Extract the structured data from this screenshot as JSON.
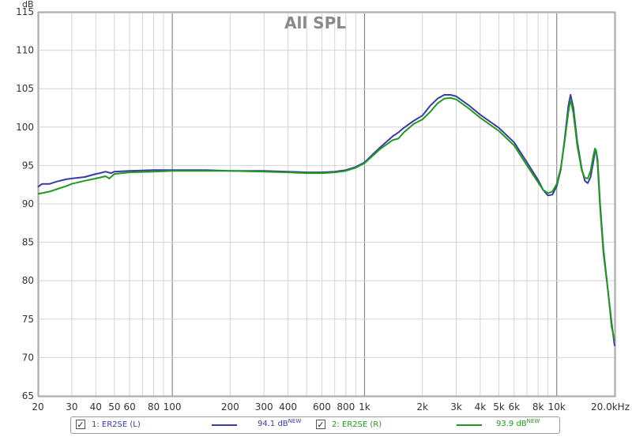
{
  "chart_data": {
    "type": "line",
    "title": "All SPL",
    "ylabel": "dB",
    "xscale": "log",
    "xlim": [
      20,
      20000
    ],
    "ylim": [
      65,
      115
    ],
    "grid": true,
    "x_ticks": [
      20,
      30,
      40,
      50,
      60,
      80,
      100,
      200,
      300,
      400,
      600,
      800,
      1000,
      2000,
      3000,
      4000,
      5000,
      6000,
      8000,
      10000,
      20000
    ],
    "x_tick_labels": [
      "20",
      "30",
      "40",
      "50",
      "60",
      "80",
      "100",
      "200",
      "300",
      "400",
      "600",
      "800",
      "1k",
      "2k",
      "3k",
      "4k",
      "5k",
      "6k",
      "8k",
      "10k",
      "20.0kHz"
    ],
    "y_ticks": [
      65,
      70,
      75,
      80,
      85,
      90,
      95,
      100,
      105,
      110,
      115
    ],
    "y_tick_labels": [
      "65",
      "70",
      "75",
      "80",
      "85",
      "90",
      "95",
      "100",
      "105",
      "110",
      "115"
    ],
    "series": [
      {
        "name": "1: ER2SE (L)",
        "color": "#3a3aa8",
        "points": [
          [
            20,
            92.2
          ],
          [
            21,
            92.6
          ],
          [
            23,
            92.6
          ],
          [
            25,
            92.9
          ],
          [
            28,
            93.2
          ],
          [
            30,
            93.3
          ],
          [
            35,
            93.5
          ],
          [
            40,
            93.9
          ],
          [
            42,
            94.0
          ],
          [
            45,
            94.2
          ],
          [
            48,
            94.0
          ],
          [
            50,
            94.2
          ],
          [
            60,
            94.3
          ],
          [
            80,
            94.4
          ],
          [
            100,
            94.4
          ],
          [
            150,
            94.4
          ],
          [
            200,
            94.3
          ],
          [
            300,
            94.3
          ],
          [
            400,
            94.2
          ],
          [
            500,
            94.1
          ],
          [
            600,
            94.1
          ],
          [
            700,
            94.2
          ],
          [
            800,
            94.4
          ],
          [
            900,
            94.8
          ],
          [
            1000,
            95.4
          ],
          [
            1200,
            97.3
          ],
          [
            1400,
            98.8
          ],
          [
            1500,
            99.3
          ],
          [
            1600,
            99.9
          ],
          [
            1800,
            100.8
          ],
          [
            2000,
            101.5
          ],
          [
            2200,
            102.8
          ],
          [
            2400,
            103.7
          ],
          [
            2600,
            104.2
          ],
          [
            2800,
            104.2
          ],
          [
            3000,
            104.0
          ],
          [
            3500,
            102.8
          ],
          [
            4000,
            101.6
          ],
          [
            5000,
            99.9
          ],
          [
            6000,
            98.0
          ],
          [
            7000,
            95.4
          ],
          [
            8000,
            93.1
          ],
          [
            8500,
            91.8
          ],
          [
            9000,
            91.1
          ],
          [
            9500,
            91.2
          ],
          [
            10000,
            92.3
          ],
          [
            10500,
            94.5
          ],
          [
            11000,
            98.5
          ],
          [
            11500,
            102.8
          ],
          [
            11800,
            104.2
          ],
          [
            12200,
            102.5
          ],
          [
            12800,
            98.0
          ],
          [
            13500,
            94.5
          ],
          [
            14000,
            93.0
          ],
          [
            14500,
            92.7
          ],
          [
            15000,
            93.5
          ],
          [
            15500,
            95.5
          ],
          [
            15800,
            96.8
          ],
          [
            16000,
            97.0
          ],
          [
            16300,
            95.8
          ],
          [
            16800,
            90.0
          ],
          [
            17500,
            84.0
          ],
          [
            18500,
            78.5
          ],
          [
            19300,
            74.5
          ],
          [
            20000,
            71.5
          ]
        ]
      },
      {
        "name": "2: ER2SE (R)",
        "color": "#1e9a1e",
        "points": [
          [
            20,
            91.3
          ],
          [
            21,
            91.4
          ],
          [
            23,
            91.6
          ],
          [
            25,
            91.9
          ],
          [
            28,
            92.3
          ],
          [
            30,
            92.6
          ],
          [
            35,
            93.0
          ],
          [
            40,
            93.3
          ],
          [
            45,
            93.6
          ],
          [
            47,
            93.3
          ],
          [
            50,
            93.9
          ],
          [
            60,
            94.1
          ],
          [
            80,
            94.2
          ],
          [
            100,
            94.3
          ],
          [
            150,
            94.3
          ],
          [
            200,
            94.3
          ],
          [
            300,
            94.2
          ],
          [
            400,
            94.1
          ],
          [
            500,
            94.0
          ],
          [
            600,
            94.0
          ],
          [
            700,
            94.1
          ],
          [
            800,
            94.3
          ],
          [
            900,
            94.7
          ],
          [
            1000,
            95.3
          ],
          [
            1200,
            97.1
          ],
          [
            1400,
            98.3
          ],
          [
            1500,
            98.5
          ],
          [
            1600,
            99.3
          ],
          [
            1800,
            100.4
          ],
          [
            2000,
            101.0
          ],
          [
            2200,
            102.0
          ],
          [
            2400,
            103.1
          ],
          [
            2600,
            103.7
          ],
          [
            2800,
            103.8
          ],
          [
            3000,
            103.6
          ],
          [
            3500,
            102.4
          ],
          [
            4000,
            101.2
          ],
          [
            5000,
            99.5
          ],
          [
            6000,
            97.6
          ],
          [
            7000,
            95.0
          ],
          [
            8000,
            92.8
          ],
          [
            8500,
            91.8
          ],
          [
            9000,
            91.4
          ],
          [
            9500,
            91.6
          ],
          [
            10000,
            92.6
          ],
          [
            10500,
            94.7
          ],
          [
            11000,
            98.2
          ],
          [
            11500,
            102.0
          ],
          [
            11800,
            103.6
          ],
          [
            12200,
            101.8
          ],
          [
            12800,
            97.5
          ],
          [
            13500,
            94.3
          ],
          [
            14000,
            93.4
          ],
          [
            14500,
            93.3
          ],
          [
            15000,
            94.3
          ],
          [
            15500,
            96.3
          ],
          [
            15800,
            97.2
          ],
          [
            16000,
            97.0
          ],
          [
            16300,
            95.3
          ],
          [
            16800,
            89.5
          ],
          [
            17500,
            83.5
          ],
          [
            18500,
            78.5
          ],
          [
            19300,
            74.0
          ],
          [
            20000,
            72.2
          ]
        ]
      }
    ],
    "legend": [
      {
        "label": "1: ER2SE (L)",
        "value": "94.1 dB",
        "tag": "NEW",
        "color": "#3a3aa8",
        "checked": true
      },
      {
        "label": "2: ER2SE (R)",
        "value": "93.9 dB",
        "tag": "NEW",
        "color": "#1e9a1e",
        "checked": true
      }
    ]
  }
}
